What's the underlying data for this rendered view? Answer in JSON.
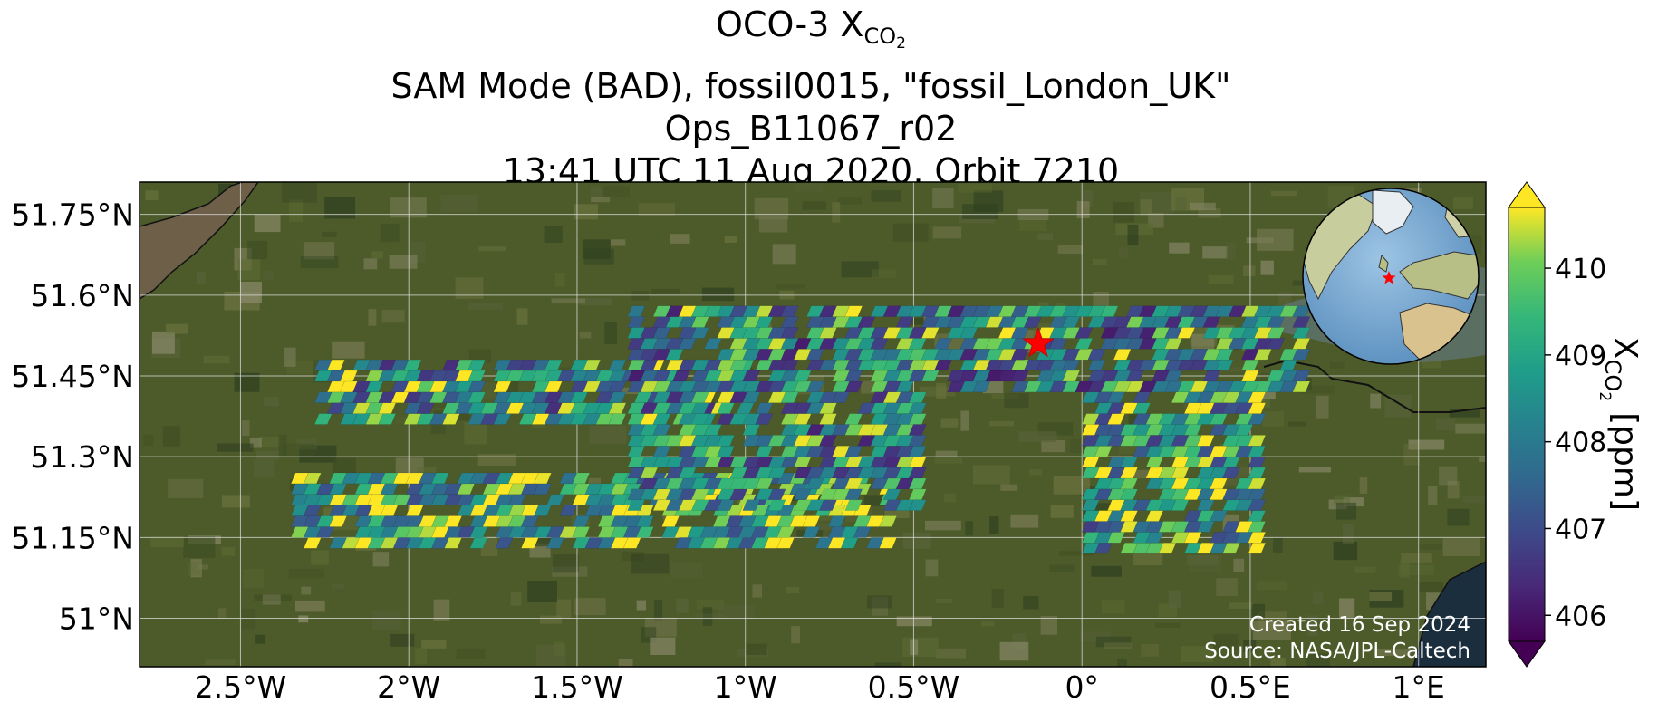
{
  "title": {
    "line1_prefix": "OCO-3 X",
    "line1_sub": "CO",
    "line1_subsub": "2",
    "line2": "SAM Mode (BAD), fossil0015, \"fossil_London_UK\"",
    "line3": "Ops_B11067_r02",
    "line4": "13:41 UTC 11 Aug 2020, Orbit 7210"
  },
  "credits": {
    "created": "Created 16 Sep 2024",
    "source": "Source: NASA/JPL-Caltech"
  },
  "colorbar": {
    "label_prefix": "X",
    "label_sub": "CO",
    "label_subsub": "2",
    "label_suffix": "[ppm]",
    "colormap": "viridis",
    "range": [
      405.7,
      410.7
    ],
    "ticks": [
      406,
      407,
      408,
      409,
      410
    ],
    "extend": "both"
  },
  "chart_data": {
    "type": "heatmap",
    "description_source": "satellite map with XCO2 soundings",
    "xlim": [
      -2.8,
      1.2
    ],
    "ylim": [
      50.91,
      51.81
    ],
    "xticks": [
      -2.5,
      -2,
      -1.5,
      -1,
      -0.5,
      0,
      0.5,
      1
    ],
    "xtick_labels": [
      "2.5°W",
      "2°W",
      "1.5°W",
      "1°W",
      "0.5°W",
      "0°",
      "0.5°E",
      "1°E"
    ],
    "yticks": [
      51,
      51.15,
      51.3,
      51.45,
      51.6,
      51.75
    ],
    "ytick_labels": [
      "51°N",
      "51.15°N",
      "51.3°N",
      "51.45°N",
      "51.6°N",
      "51.75°N"
    ],
    "grid": true,
    "target": {
      "lon": -0.13,
      "lat": 51.51,
      "marker": "red-star"
    },
    "swaths": [
      {
        "lon_min": -2.28,
        "lon_max": -1.0,
        "lat_min": 51.36,
        "lat_max": 51.48,
        "mean_ppm": 408.7
      },
      {
        "lon_min": -1.35,
        "lon_max": 0.65,
        "lat_min": 51.42,
        "lat_max": 51.58,
        "mean_ppm": 408.4
      },
      {
        "lon_min": -2.35,
        "lon_max": -0.6,
        "lat_min": 51.13,
        "lat_max": 51.26,
        "mean_ppm": 409.3
      },
      {
        "lon_min": -1.35,
        "lon_max": -0.5,
        "lat_min": 51.2,
        "lat_max": 51.42,
        "mean_ppm": 408.5
      },
      {
        "lon_min": 0.0,
        "lon_max": 0.5,
        "lat_min": 51.12,
        "lat_max": 51.42,
        "mean_ppm": 409.0
      }
    ],
    "inset": {
      "type": "globe",
      "marker": "red-star",
      "location": "top-right"
    }
  },
  "colors": {
    "target_star": "#ff0000",
    "land": "#4d5b2a",
    "sea": "#203443"
  }
}
